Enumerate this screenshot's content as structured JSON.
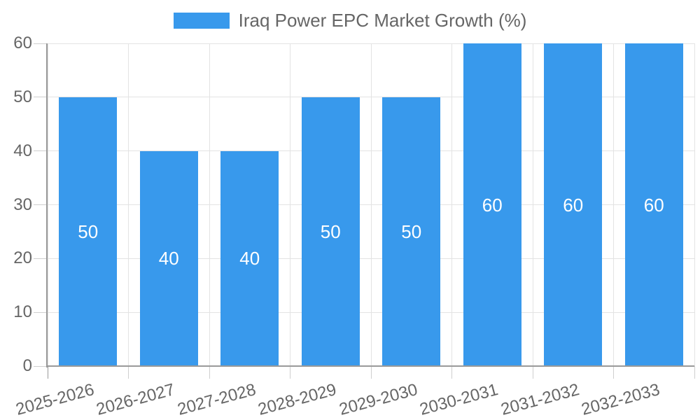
{
  "legend": {
    "label": "Iraq Power EPC Market Growth (%)"
  },
  "chart_data": {
    "type": "bar",
    "title": "",
    "categories": [
      "2025-2026",
      "2026-2027",
      "2027-2028",
      "2028-2029",
      "2029-2030",
      "2030-2031",
      "2031-2032",
      "2032-2033"
    ],
    "series": [
      {
        "name": "Iraq Power EPC Market Growth (%)",
        "values": [
          50,
          40,
          40,
          50,
          50,
          60,
          60,
          60
        ]
      }
    ],
    "data_labels": [
      "50",
      "40",
      "40",
      "50",
      "50",
      "60",
      "60",
      "60"
    ],
    "xlabel": "",
    "ylabel": "",
    "ylim": [
      0,
      60
    ],
    "ytick_step": 10,
    "yticks": [
      0,
      10,
      20,
      30,
      40,
      50,
      60
    ],
    "grid": true,
    "legend_position": "top",
    "colors": {
      "bar": "#3899EC",
      "bar_value_label": "#ffffff",
      "axis_text": "#666666",
      "grid": "#e3e3e3",
      "tick_mark": "#cfcfcf",
      "axis_line": "#9a9a9a",
      "background": "#ffffff"
    }
  }
}
